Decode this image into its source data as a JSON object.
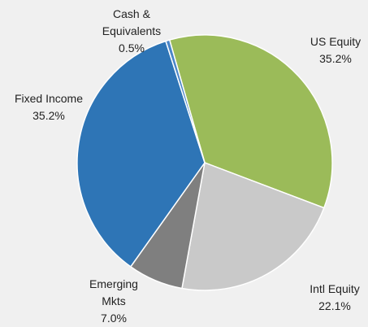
{
  "chart_data": {
    "type": "pie",
    "categories": [
      "US Equity",
      "Intl Equity",
      "Emerging Mkts",
      "Fixed Income",
      "Cash & Equivalents"
    ],
    "values": [
      35.2,
      22.1,
      7.0,
      35.2,
      0.5
    ],
    "value_labels": [
      "35.2%",
      "22.1%",
      "7.0%",
      "35.2%",
      "0.5%"
    ],
    "colors": [
      "#9bbb59",
      "#c9c9c9",
      "#7f7f7f",
      "#2e75b6",
      "#4a86c8"
    ]
  }
}
